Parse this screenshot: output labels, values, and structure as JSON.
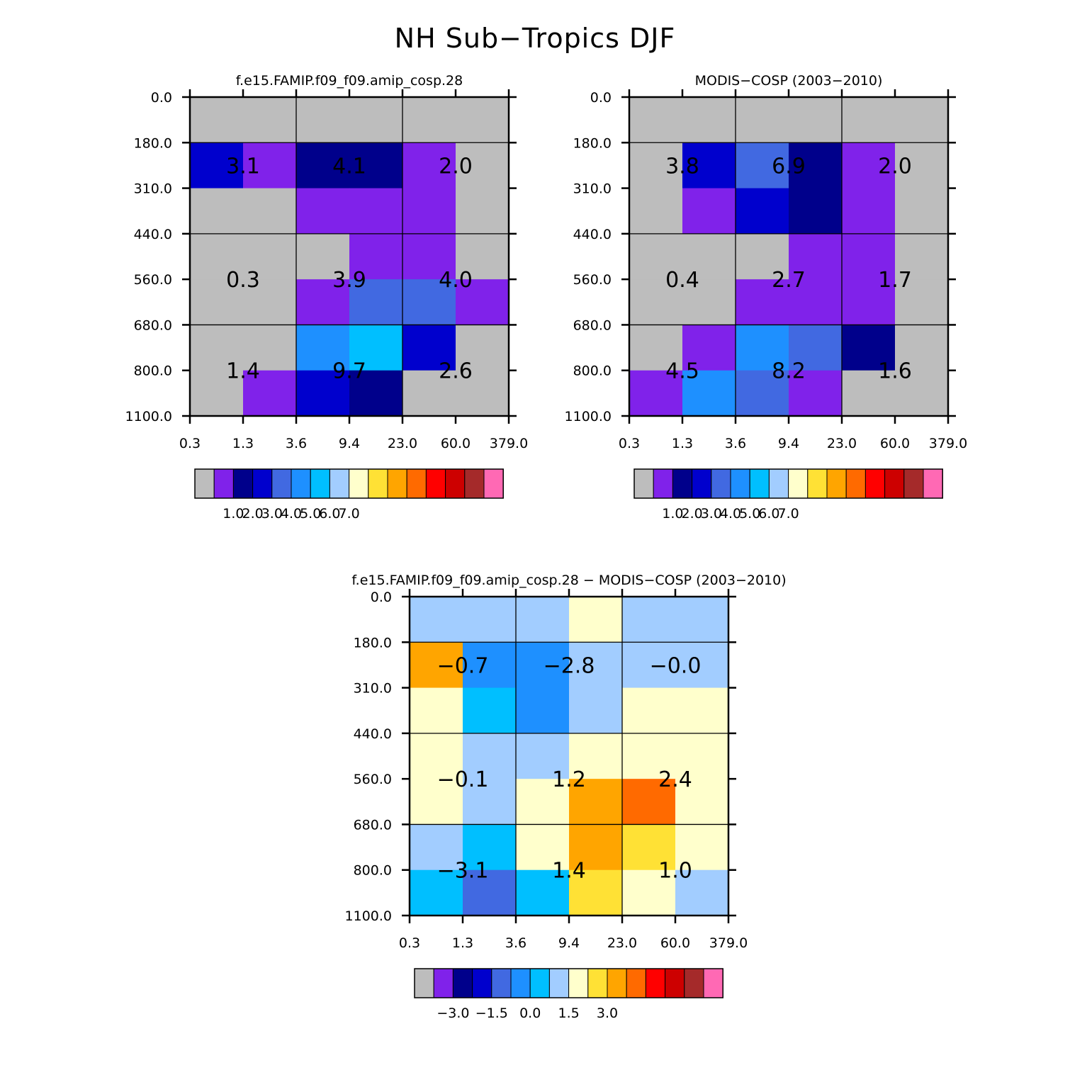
{
  "title": "NH Sub−Tropics DJF",
  "colors": {
    "missing": "#bdbdbd",
    "palette": [
      "#bdbdbd",
      "#8022ea",
      "#00008b",
      "#0000cd",
      "#4169e1",
      "#1e90ff",
      "#00bfff",
      "#a2cdff",
      "#ffffcc",
      "#ffe135",
      "#ffa500",
      "#ff6a00",
      "#ff0000",
      "#cd0000",
      "#a52a2a",
      "#ff69b4"
    ]
  },
  "chart_data": [
    {
      "type": "heatmap",
      "name": "model",
      "title": "f.e15.FAMIP.f09_f09.amip_cosp.28",
      "x_ticks": [
        "0.3",
        "1.3",
        "3.6",
        "9.4",
        "23.0",
        "60.0",
        "379.0"
      ],
      "y_ticks": [
        "0.0",
        "180.0",
        "310.0",
        "440.0",
        "560.0",
        "680.0",
        "800.0",
        "1100.0"
      ],
      "cells": [
        [
          0,
          0,
          0,
          0,
          0,
          0
        ],
        [
          3,
          1,
          2,
          2,
          1,
          0
        ],
        [
          0,
          0,
          1,
          1,
          1,
          0
        ],
        [
          0,
          0,
          0,
          1,
          1,
          0
        ],
        [
          0,
          0,
          1,
          4,
          4,
          1
        ],
        [
          0,
          0,
          5,
          6,
          3,
          0
        ],
        [
          0,
          1,
          3,
          2,
          0,
          0
        ]
      ],
      "values": [
        [
          "3.1",
          "4.1",
          "2.0"
        ],
        [
          "0.3",
          "3.9",
          "4.0"
        ],
        [
          "1.4",
          "9.7",
          "2.6"
        ]
      ],
      "colorbar_labels": [
        "1.0",
        "2.0",
        "3.0",
        "4.0",
        "5.0",
        "6.0",
        "7.0"
      ]
    },
    {
      "type": "heatmap",
      "name": "obs",
      "title": "MODIS−COSP (2003−2010)",
      "x_ticks": [
        "0.3",
        "1.3",
        "3.6",
        "9.4",
        "23.0",
        "60.0",
        "379.0"
      ],
      "y_ticks": [
        "0.0",
        "180.0",
        "310.0",
        "440.0",
        "560.0",
        "680.0",
        "800.0",
        "1100.0"
      ],
      "cells": [
        [
          0,
          0,
          0,
          0,
          0,
          0
        ],
        [
          0,
          3,
          4,
          2,
          1,
          0
        ],
        [
          0,
          1,
          3,
          2,
          1,
          0
        ],
        [
          0,
          0,
          0,
          1,
          1,
          0
        ],
        [
          0,
          0,
          1,
          1,
          1,
          0
        ],
        [
          0,
          1,
          5,
          4,
          2,
          0
        ],
        [
          1,
          5,
          4,
          1,
          0,
          0
        ]
      ],
      "values": [
        [
          "3.8",
          "6.9",
          "2.0"
        ],
        [
          "0.4",
          "2.7",
          "1.7"
        ],
        [
          "4.5",
          "8.2",
          "1.6"
        ]
      ],
      "colorbar_labels": [
        "1.0",
        "2.0",
        "3.0",
        "4.0",
        "5.0",
        "6.0",
        "7.0"
      ]
    },
    {
      "type": "heatmap",
      "name": "diff",
      "title": "f.e15.FAMIP.f09_f09.amip_cosp.28 − MODIS−COSP (2003−2010)",
      "x_ticks": [
        "0.3",
        "1.3",
        "3.6",
        "9.4",
        "23.0",
        "60.0",
        "379.0"
      ],
      "y_ticks": [
        "0.0",
        "180.0",
        "310.0",
        "440.0",
        "560.0",
        "680.0",
        "800.0",
        "1100.0"
      ],
      "cells": [
        [
          7,
          7,
          7,
          8,
          7,
          7
        ],
        [
          10,
          5,
          5,
          7,
          7,
          7
        ],
        [
          8,
          6,
          5,
          7,
          8,
          8
        ],
        [
          8,
          7,
          7,
          8,
          8,
          8
        ],
        [
          8,
          7,
          8,
          10,
          11,
          8
        ],
        [
          7,
          6,
          8,
          10,
          9,
          8
        ],
        [
          6,
          4,
          6,
          9,
          8,
          7
        ]
      ],
      "values": [
        [
          "−0.7",
          "−2.8",
          "−0.0"
        ],
        [
          "−0.1",
          "1.2",
          "2.4"
        ],
        [
          "−3.1",
          "1.4",
          "1.0"
        ]
      ],
      "colorbar_labels": [
        "−3.0",
        "−1.5",
        "0.0",
        "1.5",
        "3.0"
      ]
    }
  ]
}
